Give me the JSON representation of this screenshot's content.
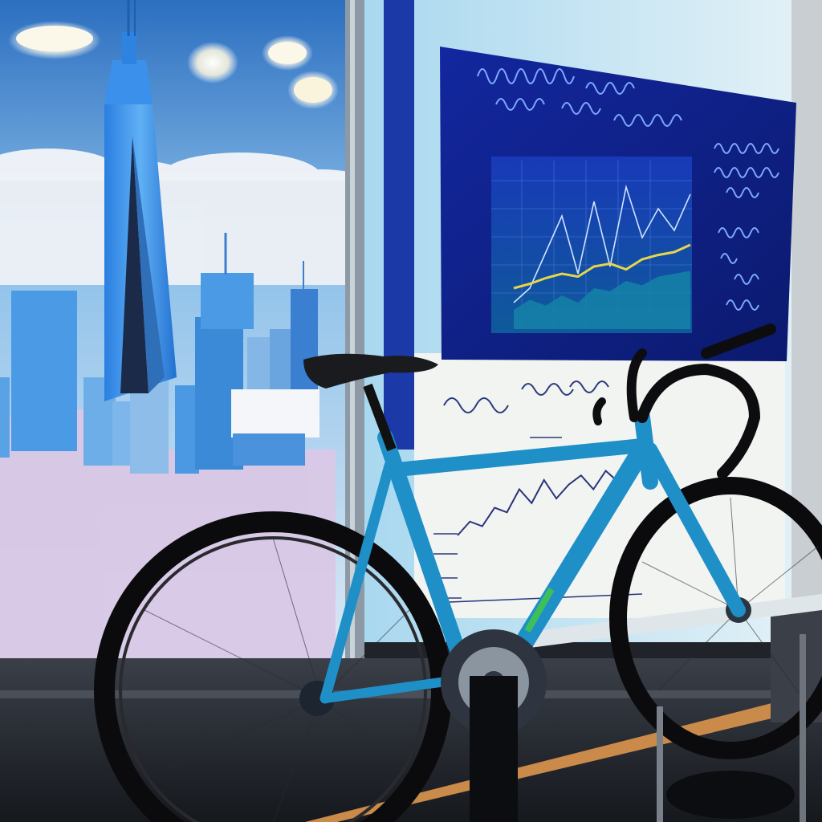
{
  "scene": {
    "description_free": true
  },
  "colors": {
    "sky_top": "#2f7fd0",
    "sky_bottom": "#cfe3f2",
    "skyline_blue": "#3f8fe0",
    "skyline_pink": "#d8c6e4",
    "board_navy": "#12259a",
    "bike_blue": "#1f8fc8",
    "wall_light": "#eaf1f4",
    "floor_wood": "#c98a4a",
    "chart_yellow": "#e7d64a"
  },
  "icons": {
    "bicycle": "bicycle-icon",
    "stand": "bike-stand-icon",
    "lamp": "ceiling-lamp-icon"
  },
  "board_chart": {
    "series_a": [
      0.1,
      0.2,
      0.45,
      0.7,
      0.3,
      0.8,
      0.35,
      0.9,
      0.55,
      0.75,
      0.6,
      0.85
    ],
    "series_b": [
      0.15,
      0.18,
      0.22,
      0.25,
      0.23,
      0.3,
      0.32,
      0.28,
      0.35,
      0.38,
      0.4,
      0.45
    ],
    "series_c": [
      0.05,
      0.12,
      0.08,
      0.15,
      0.1,
      0.2,
      0.18,
      0.25,
      0.22,
      0.28,
      0.3,
      0.32
    ]
  },
  "whiteboard_chart": {
    "series": [
      0.2,
      0.35,
      0.3,
      0.5,
      0.45,
      0.7,
      0.55,
      0.8,
      0.6,
      0.75,
      0.85,
      0.7,
      0.9,
      0.78
    ]
  }
}
